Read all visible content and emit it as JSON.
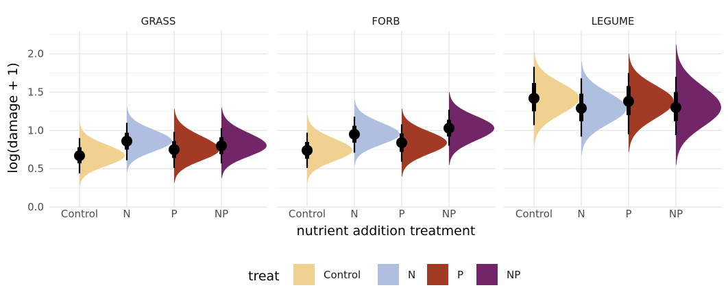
{
  "chart_data": {
    "type": "violin",
    "xlabel": "nutrient addition treatment",
    "ylabel": "log(damage + 1)",
    "ylim": [
      0,
      2.3
    ],
    "yticks": [
      0.0,
      0.5,
      1.0,
      1.5,
      2.0
    ],
    "ytick_labels": [
      "0.0",
      "0.5",
      "1.0",
      "1.5",
      "2.0"
    ],
    "categories": [
      "Control",
      "N",
      "P",
      "NP"
    ],
    "grid": true,
    "legend": {
      "title": "treat",
      "position": "bottom",
      "entries": [
        {
          "label": "Control",
          "color": "#F1D18F"
        },
        {
          "label": "N",
          "color": "#AFBFE0"
        },
        {
          "label": "P",
          "color": "#A33A23"
        },
        {
          "label": "NP",
          "color": "#722667"
        }
      ]
    },
    "panels": [
      {
        "title": "GRASS",
        "series": [
          {
            "treat": "Control",
            "median": 0.67,
            "q25": 0.57,
            "q75": 0.78,
            "lo": 0.44,
            "hi": 0.9,
            "min": 0.28,
            "max": 1.1,
            "mode": 0.67
          },
          {
            "treat": "N",
            "median": 0.86,
            "q25": 0.75,
            "q75": 0.97,
            "lo": 0.61,
            "hi": 1.1,
            "min": 0.46,
            "max": 1.3,
            "mode": 0.86
          },
          {
            "treat": "P",
            "median": 0.75,
            "q25": 0.64,
            "q75": 0.86,
            "lo": 0.51,
            "hi": 0.98,
            "min": 0.32,
            "max": 1.28,
            "mode": 0.75
          },
          {
            "treat": "NP",
            "median": 0.8,
            "q25": 0.69,
            "q75": 0.91,
            "lo": 0.57,
            "hi": 1.03,
            "min": 0.38,
            "max": 1.3,
            "mode": 0.8
          }
        ]
      },
      {
        "title": "FORB",
        "series": [
          {
            "treat": "Control",
            "median": 0.74,
            "q25": 0.63,
            "q75": 0.85,
            "lo": 0.51,
            "hi": 0.97,
            "min": 0.32,
            "max": 1.2,
            "mode": 0.74
          },
          {
            "treat": "N",
            "median": 0.95,
            "q25": 0.84,
            "q75": 1.06,
            "lo": 0.71,
            "hi": 1.18,
            "min": 0.55,
            "max": 1.4,
            "mode": 0.95
          },
          {
            "treat": "P",
            "median": 0.84,
            "q25": 0.72,
            "q75": 0.96,
            "lo": 0.59,
            "hi": 1.08,
            "min": 0.4,
            "max": 1.28,
            "mode": 0.84
          },
          {
            "treat": "NP",
            "median": 1.03,
            "q25": 0.92,
            "q75": 1.14,
            "lo": 0.8,
            "hi": 1.27,
            "min": 0.55,
            "max": 1.5,
            "mode": 1.03
          }
        ]
      },
      {
        "title": "LEGUME",
        "series": [
          {
            "treat": "Control",
            "median": 1.42,
            "q25": 1.25,
            "q75": 1.62,
            "lo": 1.07,
            "hi": 1.83,
            "min": 0.8,
            "max": 2.02,
            "mode": 1.42
          },
          {
            "treat": "N",
            "median": 1.29,
            "q25": 1.12,
            "q75": 1.48,
            "lo": 0.92,
            "hi": 1.68,
            "min": 0.68,
            "max": 1.9,
            "mode": 1.29
          },
          {
            "treat": "P",
            "median": 1.38,
            "q25": 1.2,
            "q75": 1.58,
            "lo": 0.95,
            "hi": 1.75,
            "min": 0.72,
            "max": 2.0,
            "mode": 1.38
          },
          {
            "treat": "NP",
            "median": 1.3,
            "q25": 1.12,
            "q75": 1.5,
            "lo": 0.94,
            "hi": 1.7,
            "min": 0.55,
            "max": 2.12,
            "mode": 1.3
          }
        ]
      }
    ]
  }
}
